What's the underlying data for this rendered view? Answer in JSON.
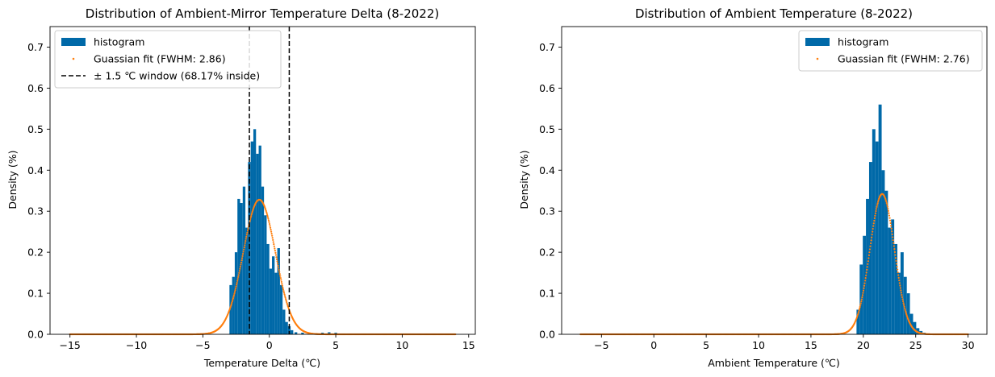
{
  "chart_data": [
    {
      "type": "bar",
      "title": "Distribution of Ambient-Mirror Temperature Delta (8-2022)",
      "xlabel": "Temperature Delta (℃)",
      "ylabel": "Density (%)",
      "xlim": [
        -16.5,
        15.5
      ],
      "ylim": [
        0,
        0.75
      ],
      "xticks": [
        -15,
        -10,
        -5,
        0,
        5,
        10,
        15
      ],
      "xtick_labels": [
        "−15",
        "−10",
        "−5",
        "0",
        "5",
        "10",
        "15"
      ],
      "yticks": [
        0.0,
        0.1,
        0.2,
        0.3,
        0.4,
        0.5,
        0.6,
        0.7
      ],
      "ytick_labels": [
        "0.0",
        "0.1",
        "0.2",
        "0.3",
        "0.4",
        "0.5",
        "0.6",
        "0.7"
      ],
      "legend_position": "upper-left",
      "grid": false,
      "histogram": {
        "name": "histogram",
        "color": "#0069a8",
        "bins": [
          [
            -2.9,
            0.12
          ],
          [
            -2.7,
            0.14
          ],
          [
            -2.5,
            0.2
          ],
          [
            -2.3,
            0.33
          ],
          [
            -2.1,
            0.32
          ],
          [
            -1.9,
            0.36
          ],
          [
            -1.7,
            0.26
          ],
          [
            -1.5,
            0.42
          ],
          [
            -1.3,
            0.47
          ],
          [
            -1.1,
            0.5
          ],
          [
            -0.9,
            0.44
          ],
          [
            -0.7,
            0.46
          ],
          [
            -0.5,
            0.36
          ],
          [
            -0.3,
            0.29
          ],
          [
            -0.1,
            0.22
          ],
          [
            0.1,
            0.16
          ],
          [
            0.3,
            0.19
          ],
          [
            0.5,
            0.15
          ],
          [
            0.7,
            0.21
          ],
          [
            0.9,
            0.12
          ],
          [
            1.1,
            0.06
          ],
          [
            1.3,
            0.03
          ],
          [
            1.5,
            0.02
          ],
          [
            1.7,
            0.01
          ],
          [
            2.0,
            0.005
          ],
          [
            2.5,
            0.004
          ],
          [
            3.0,
            0.003
          ],
          [
            3.5,
            0.003
          ],
          [
            4.0,
            0.004
          ],
          [
            4.5,
            0.005
          ],
          [
            5.0,
            0.004
          ]
        ],
        "bin_width": 0.2
      },
      "gaussian": {
        "name": "Guassian fit (FWHM: 2.86)",
        "color": "#ff7f0e",
        "mean": -0.75,
        "fwhm": 2.86,
        "peak": 0.328,
        "x_range": [
          -15,
          14
        ]
      },
      "vlines": {
        "name": "± 1.5 ℃ window (68.17% inside)",
        "color": "#000000",
        "x": [
          -1.5,
          1.5
        ]
      }
    },
    {
      "type": "bar",
      "title": "Distribution of Ambient Temperature (8-2022)",
      "xlabel": "Ambient Temperature (℃)",
      "ylabel": "Density (%)",
      "xlim": [
        -8.8,
        31.8
      ],
      "ylim": [
        0,
        0.75
      ],
      "xticks": [
        -5,
        0,
        5,
        10,
        15,
        20,
        25,
        30
      ],
      "xtick_labels": [
        "−5",
        "0",
        "5",
        "10",
        "15",
        "20",
        "25",
        "30"
      ],
      "yticks": [
        0.0,
        0.1,
        0.2,
        0.3,
        0.4,
        0.5,
        0.6,
        0.7
      ],
      "ytick_labels": [
        "0.0",
        "0.1",
        "0.2",
        "0.3",
        "0.4",
        "0.5",
        "0.6",
        "0.7"
      ],
      "legend_position": "upper-right",
      "grid": false,
      "histogram": {
        "name": "histogram",
        "color": "#0069a8",
        "bins": [
          [
            19.5,
            0.06
          ],
          [
            19.8,
            0.17
          ],
          [
            20.1,
            0.24
          ],
          [
            20.4,
            0.33
          ],
          [
            20.7,
            0.42
          ],
          [
            21.0,
            0.5
          ],
          [
            21.3,
            0.47
          ],
          [
            21.6,
            0.56
          ],
          [
            21.9,
            0.4
          ],
          [
            22.2,
            0.35
          ],
          [
            22.5,
            0.26
          ],
          [
            22.8,
            0.28
          ],
          [
            23.1,
            0.22
          ],
          [
            23.4,
            0.15
          ],
          [
            23.7,
            0.2
          ],
          [
            24.0,
            0.14
          ],
          [
            24.3,
            0.1
          ],
          [
            24.6,
            0.05
          ],
          [
            24.9,
            0.03
          ],
          [
            25.2,
            0.015
          ],
          [
            25.5,
            0.008
          ],
          [
            25.8,
            0.004
          ]
        ],
        "bin_width": 0.3
      },
      "gaussian": {
        "name": "Guassian fit (FWHM: 2.76)",
        "color": "#ff7f0e",
        "mean": 21.8,
        "fwhm": 2.76,
        "peak": 0.342,
        "x_range": [
          -7,
          30
        ]
      }
    }
  ]
}
